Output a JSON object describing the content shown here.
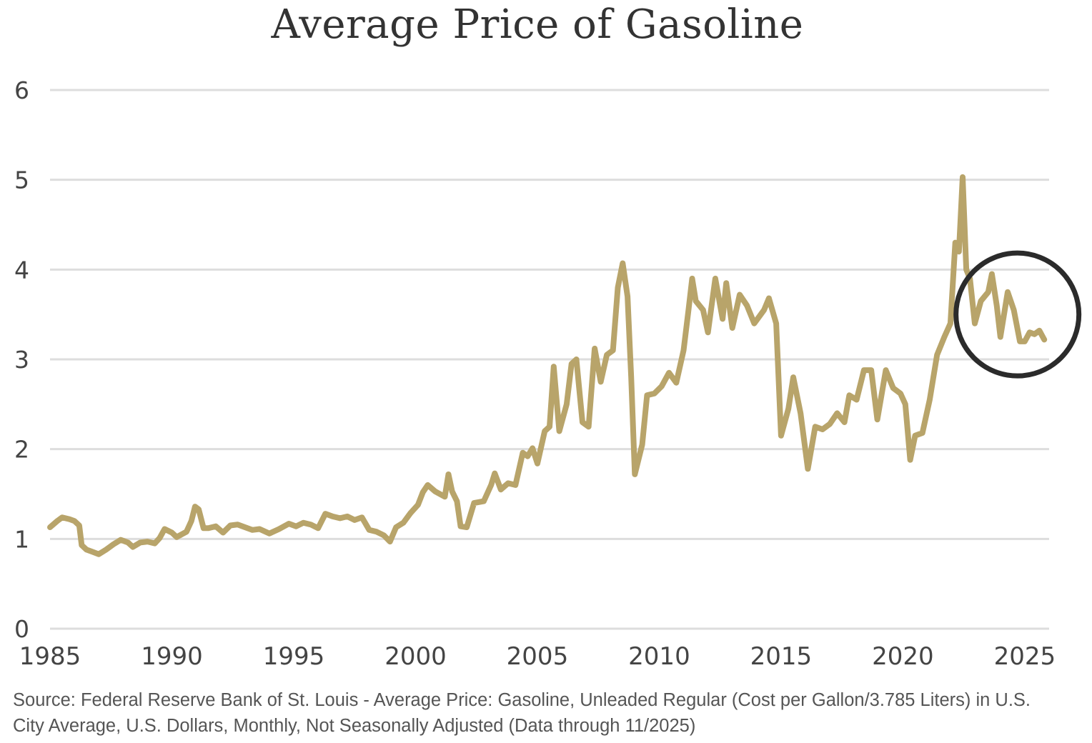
{
  "chart_data": {
    "type": "line",
    "title": "Average Price of Gasoline",
    "xlabel": "",
    "ylabel": "",
    "xlim": [
      1985,
      2026
    ],
    "ylim": [
      0,
      6
    ],
    "x_ticks": [
      1985,
      1990,
      1995,
      2000,
      2005,
      2010,
      2015,
      2020,
      2025
    ],
    "y_ticks": [
      0,
      1,
      2,
      3,
      4,
      5,
      6
    ],
    "grid": true,
    "line_color": "#b8a46a",
    "gridline_color": "#dddddd",
    "annotation": {
      "type": "circle",
      "marks_period": "2023-2025"
    },
    "series": [
      {
        "name": "Average Price: Gasoline, Unleaded Regular",
        "points": [
          [
            1985.0,
            1.13
          ],
          [
            1985.3,
            1.2
          ],
          [
            1985.5,
            1.24
          ],
          [
            1985.8,
            1.22
          ],
          [
            1986.0,
            1.2
          ],
          [
            1986.2,
            1.15
          ],
          [
            1986.3,
            0.93
          ],
          [
            1986.5,
            0.88
          ],
          [
            1986.7,
            0.86
          ],
          [
            1987.0,
            0.83
          ],
          [
            1987.3,
            0.88
          ],
          [
            1987.6,
            0.94
          ],
          [
            1987.9,
            0.99
          ],
          [
            1988.2,
            0.96
          ],
          [
            1988.4,
            0.91
          ],
          [
            1988.7,
            0.96
          ],
          [
            1989.0,
            0.97
          ],
          [
            1989.3,
            0.95
          ],
          [
            1989.5,
            1.01
          ],
          [
            1989.7,
            1.11
          ],
          [
            1990.0,
            1.07
          ],
          [
            1990.2,
            1.02
          ],
          [
            1990.4,
            1.05
          ],
          [
            1990.6,
            1.08
          ],
          [
            1990.8,
            1.2
          ],
          [
            1990.95,
            1.36
          ],
          [
            1991.1,
            1.33
          ],
          [
            1991.3,
            1.12
          ],
          [
            1991.5,
            1.12
          ],
          [
            1991.8,
            1.14
          ],
          [
            1992.1,
            1.07
          ],
          [
            1992.4,
            1.15
          ],
          [
            1992.7,
            1.16
          ],
          [
            1993.0,
            1.13
          ],
          [
            1993.3,
            1.1
          ],
          [
            1993.6,
            1.11
          ],
          [
            1994.0,
            1.06
          ],
          [
            1994.4,
            1.11
          ],
          [
            1994.8,
            1.17
          ],
          [
            1995.1,
            1.14
          ],
          [
            1995.4,
            1.18
          ],
          [
            1995.7,
            1.16
          ],
          [
            1996.0,
            1.12
          ],
          [
            1996.3,
            1.28
          ],
          [
            1996.6,
            1.25
          ],
          [
            1996.9,
            1.23
          ],
          [
            1997.2,
            1.25
          ],
          [
            1997.5,
            1.21
          ],
          [
            1997.8,
            1.24
          ],
          [
            1998.1,
            1.1
          ],
          [
            1998.4,
            1.08
          ],
          [
            1998.7,
            1.04
          ],
          [
            1998.95,
            0.97
          ],
          [
            1999.2,
            1.13
          ],
          [
            1999.5,
            1.18
          ],
          [
            1999.8,
            1.29
          ],
          [
            2000.1,
            1.38
          ],
          [
            2000.3,
            1.52
          ],
          [
            2000.5,
            1.6
          ],
          [
            2000.8,
            1.53
          ],
          [
            2001.2,
            1.47
          ],
          [
            2001.35,
            1.72
          ],
          [
            2001.5,
            1.53
          ],
          [
            2001.7,
            1.42
          ],
          [
            2001.85,
            1.14
          ],
          [
            2002.1,
            1.13
          ],
          [
            2002.4,
            1.4
          ],
          [
            2002.8,
            1.42
          ],
          [
            2003.1,
            1.6
          ],
          [
            2003.25,
            1.73
          ],
          [
            2003.5,
            1.55
          ],
          [
            2003.8,
            1.62
          ],
          [
            2004.1,
            1.6
          ],
          [
            2004.4,
            1.96
          ],
          [
            2004.6,
            1.92
          ],
          [
            2004.8,
            2.01
          ],
          [
            2005.0,
            1.84
          ],
          [
            2005.3,
            2.2
          ],
          [
            2005.5,
            2.25
          ],
          [
            2005.67,
            2.92
          ],
          [
            2005.9,
            2.2
          ],
          [
            2006.2,
            2.5
          ],
          [
            2006.4,
            2.95
          ],
          [
            2006.6,
            3.0
          ],
          [
            2006.85,
            2.3
          ],
          [
            2007.1,
            2.25
          ],
          [
            2007.35,
            3.12
          ],
          [
            2007.6,
            2.75
          ],
          [
            2007.85,
            3.05
          ],
          [
            2008.1,
            3.1
          ],
          [
            2008.3,
            3.8
          ],
          [
            2008.5,
            4.07
          ],
          [
            2008.7,
            3.7
          ],
          [
            2008.85,
            2.8
          ],
          [
            2009.0,
            1.72
          ],
          [
            2009.3,
            2.05
          ],
          [
            2009.5,
            2.6
          ],
          [
            2009.8,
            2.62
          ],
          [
            2010.1,
            2.7
          ],
          [
            2010.4,
            2.85
          ],
          [
            2010.7,
            2.74
          ],
          [
            2011.0,
            3.1
          ],
          [
            2011.2,
            3.55
          ],
          [
            2011.35,
            3.9
          ],
          [
            2011.5,
            3.65
          ],
          [
            2011.8,
            3.55
          ],
          [
            2012.0,
            3.3
          ],
          [
            2012.3,
            3.9
          ],
          [
            2012.6,
            3.45
          ],
          [
            2012.75,
            3.85
          ],
          [
            2013.0,
            3.35
          ],
          [
            2013.3,
            3.72
          ],
          [
            2013.6,
            3.6
          ],
          [
            2013.9,
            3.4
          ],
          [
            2014.3,
            3.55
          ],
          [
            2014.5,
            3.68
          ],
          [
            2014.8,
            3.4
          ],
          [
            2015.0,
            2.15
          ],
          [
            2015.3,
            2.45
          ],
          [
            2015.5,
            2.8
          ],
          [
            2015.8,
            2.4
          ],
          [
            2016.1,
            1.78
          ],
          [
            2016.4,
            2.25
          ],
          [
            2016.7,
            2.22
          ],
          [
            2017.0,
            2.28
          ],
          [
            2017.3,
            2.4
          ],
          [
            2017.6,
            2.3
          ],
          [
            2017.8,
            2.6
          ],
          [
            2018.1,
            2.55
          ],
          [
            2018.4,
            2.88
          ],
          [
            2018.7,
            2.88
          ],
          [
            2018.95,
            2.33
          ],
          [
            2019.3,
            2.88
          ],
          [
            2019.6,
            2.68
          ],
          [
            2019.9,
            2.62
          ],
          [
            2020.1,
            2.5
          ],
          [
            2020.3,
            1.88
          ],
          [
            2020.5,
            2.15
          ],
          [
            2020.8,
            2.18
          ],
          [
            2021.1,
            2.55
          ],
          [
            2021.4,
            3.05
          ],
          [
            2021.7,
            3.25
          ],
          [
            2021.95,
            3.4
          ],
          [
            2022.15,
            4.3
          ],
          [
            2022.3,
            4.2
          ],
          [
            2022.45,
            5.03
          ],
          [
            2022.6,
            4.0
          ],
          [
            2022.75,
            3.9
          ],
          [
            2022.95,
            3.4
          ],
          [
            2023.2,
            3.65
          ],
          [
            2023.5,
            3.75
          ],
          [
            2023.65,
            3.95
          ],
          [
            2023.85,
            3.6
          ],
          [
            2024.0,
            3.25
          ],
          [
            2024.3,
            3.75
          ],
          [
            2024.55,
            3.55
          ],
          [
            2024.8,
            3.2
          ],
          [
            2025.0,
            3.2
          ],
          [
            2025.2,
            3.3
          ],
          [
            2025.4,
            3.28
          ],
          [
            2025.6,
            3.32
          ],
          [
            2025.8,
            3.22
          ]
        ]
      }
    ]
  },
  "source_note": "Source: Federal Reserve Bank of St. Louis - Average Price: Gasoline, Unleaded Regular (Cost per Gallon/3.785 Liters) in U.S. City Average, U.S. Dollars, Monthly, Not Seasonally Adjusted (Data through 11/2025)"
}
